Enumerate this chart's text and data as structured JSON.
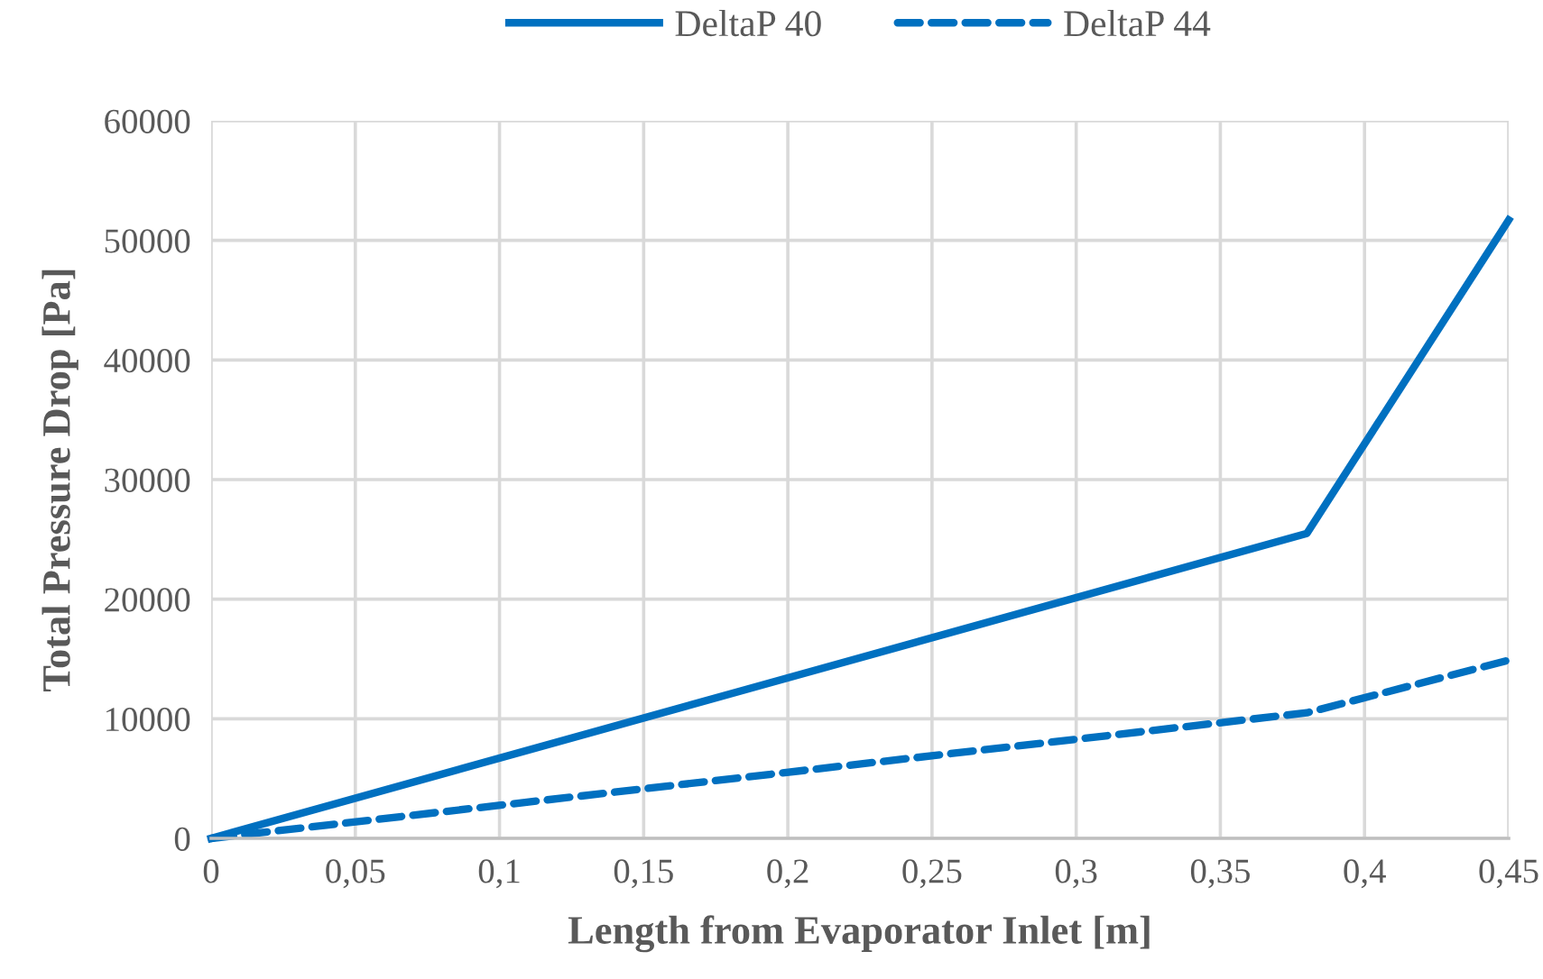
{
  "chart_data": {
    "type": "line",
    "xlabel": "Length from Evaporator Inlet [m]",
    "ylabel": "Total Pressure Drop [Pa]",
    "x": [
      0,
      0.38,
      0.45
    ],
    "series": [
      {
        "name": "DeltaP 40",
        "color": "#0070c0",
        "values": [
          0,
          25500,
          51700
        ],
        "line_style": "solid"
      },
      {
        "name": "DeltaP 44",
        "color": "#0070c0",
        "values": [
          0,
          10500,
          14900
        ],
        "line_style": "dashed"
      }
    ],
    "xlim": [
      0,
      0.45
    ],
    "xticks": [
      {
        "value": 0,
        "label": "0"
      },
      {
        "value": 0.05,
        "label": "0,05"
      },
      {
        "value": 0.1,
        "label": "0,1"
      },
      {
        "value": 0.15,
        "label": "0,15"
      },
      {
        "value": 0.2,
        "label": "0,2"
      },
      {
        "value": 0.25,
        "label": "0,25"
      },
      {
        "value": 0.3,
        "label": "0,3"
      },
      {
        "value": 0.35,
        "label": "0,35"
      },
      {
        "value": 0.4,
        "label": "0,4"
      },
      {
        "value": 0.45,
        "label": "0,45"
      }
    ],
    "ylim": [
      0,
      60000
    ],
    "yticks": [
      0,
      10000,
      20000,
      30000,
      40000,
      50000,
      60000
    ],
    "grid": true,
    "legend": "top",
    "marker": "none"
  }
}
